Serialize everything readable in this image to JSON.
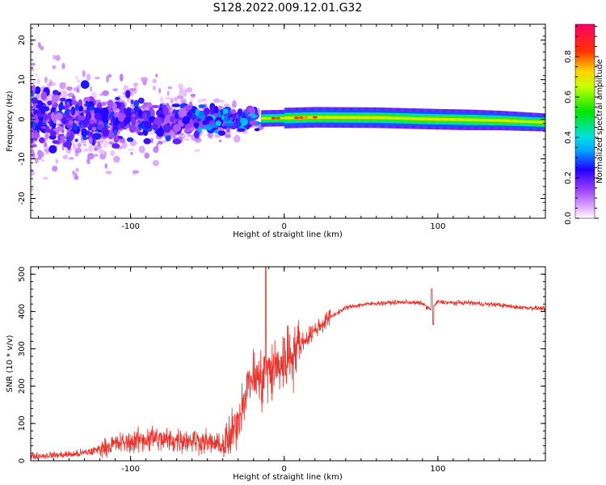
{
  "title": "S128.2022.009.12.01.G32",
  "chart_data": [
    {
      "type": "heatmap",
      "xlabel": "Height of straight line (km)",
      "ylabel": "Frequency (Hz)",
      "xlim": [
        -165,
        170
      ],
      "ylim": [
        -25,
        24
      ],
      "x_ticks": [
        -100,
        0,
        100
      ],
      "y_ticks": [
        -20,
        -10,
        0,
        10,
        20
      ],
      "grid": false,
      "description_points": {
        "stable_band_freq_hz": 0,
        "stable_band_start_km": -15,
        "ridge_points": [
          [
            -15,
            0.2
          ],
          [
            0,
            0.3
          ],
          [
            20,
            0.5
          ],
          [
            60,
            0.4
          ],
          [
            100,
            0.0
          ],
          [
            140,
            -0.3
          ],
          [
            170,
            -0.8
          ]
        ]
      },
      "colorbar": {
        "label": "Normalized spectral amplitude",
        "range": [
          0,
          0.96
        ],
        "ticks": [
          0.0,
          0.2,
          0.4,
          0.6,
          0.8
        ],
        "tick_labels": [
          "0.0",
          "0.2",
          "0.4",
          "0.6",
          "0.8"
        ]
      }
    },
    {
      "type": "line",
      "xlabel": "Height of straight line (km)",
      "ylabel": "SNR (10 * v/v)",
      "xlim": [
        -165,
        170
      ],
      "ylim": [
        0,
        520
      ],
      "x_ticks": [
        -100,
        0,
        100
      ],
      "y_ticks": [
        0,
        100,
        200,
        300,
        400,
        500
      ],
      "color": "#e8332c",
      "series": [
        {
          "x": [
            -165,
            -150,
            -135,
            -125,
            -118,
            -110,
            -100,
            -90,
            -85,
            -80,
            -70,
            -60,
            -50,
            -40,
            -35,
            -30,
            -25,
            -20,
            -15,
            -12,
            -10,
            -5,
            0,
            5,
            10,
            15,
            20,
            30,
            40,
            50,
            60,
            70,
            80,
            90,
            95,
            100,
            110,
            120,
            130,
            140,
            150,
            160,
            170
          ],
          "values": [
            12,
            15,
            18,
            25,
            35,
            45,
            50,
            58,
            62,
            55,
            55,
            56,
            50,
            40,
            60,
            110,
            190,
            230,
            210,
            240,
            230,
            250,
            270,
            290,
            310,
            330,
            350,
            385,
            410,
            418,
            422,
            424,
            425,
            422,
            405,
            426,
            423,
            424,
            420,
            418,
            412,
            410,
            408
          ]
        }
      ]
    }
  ]
}
